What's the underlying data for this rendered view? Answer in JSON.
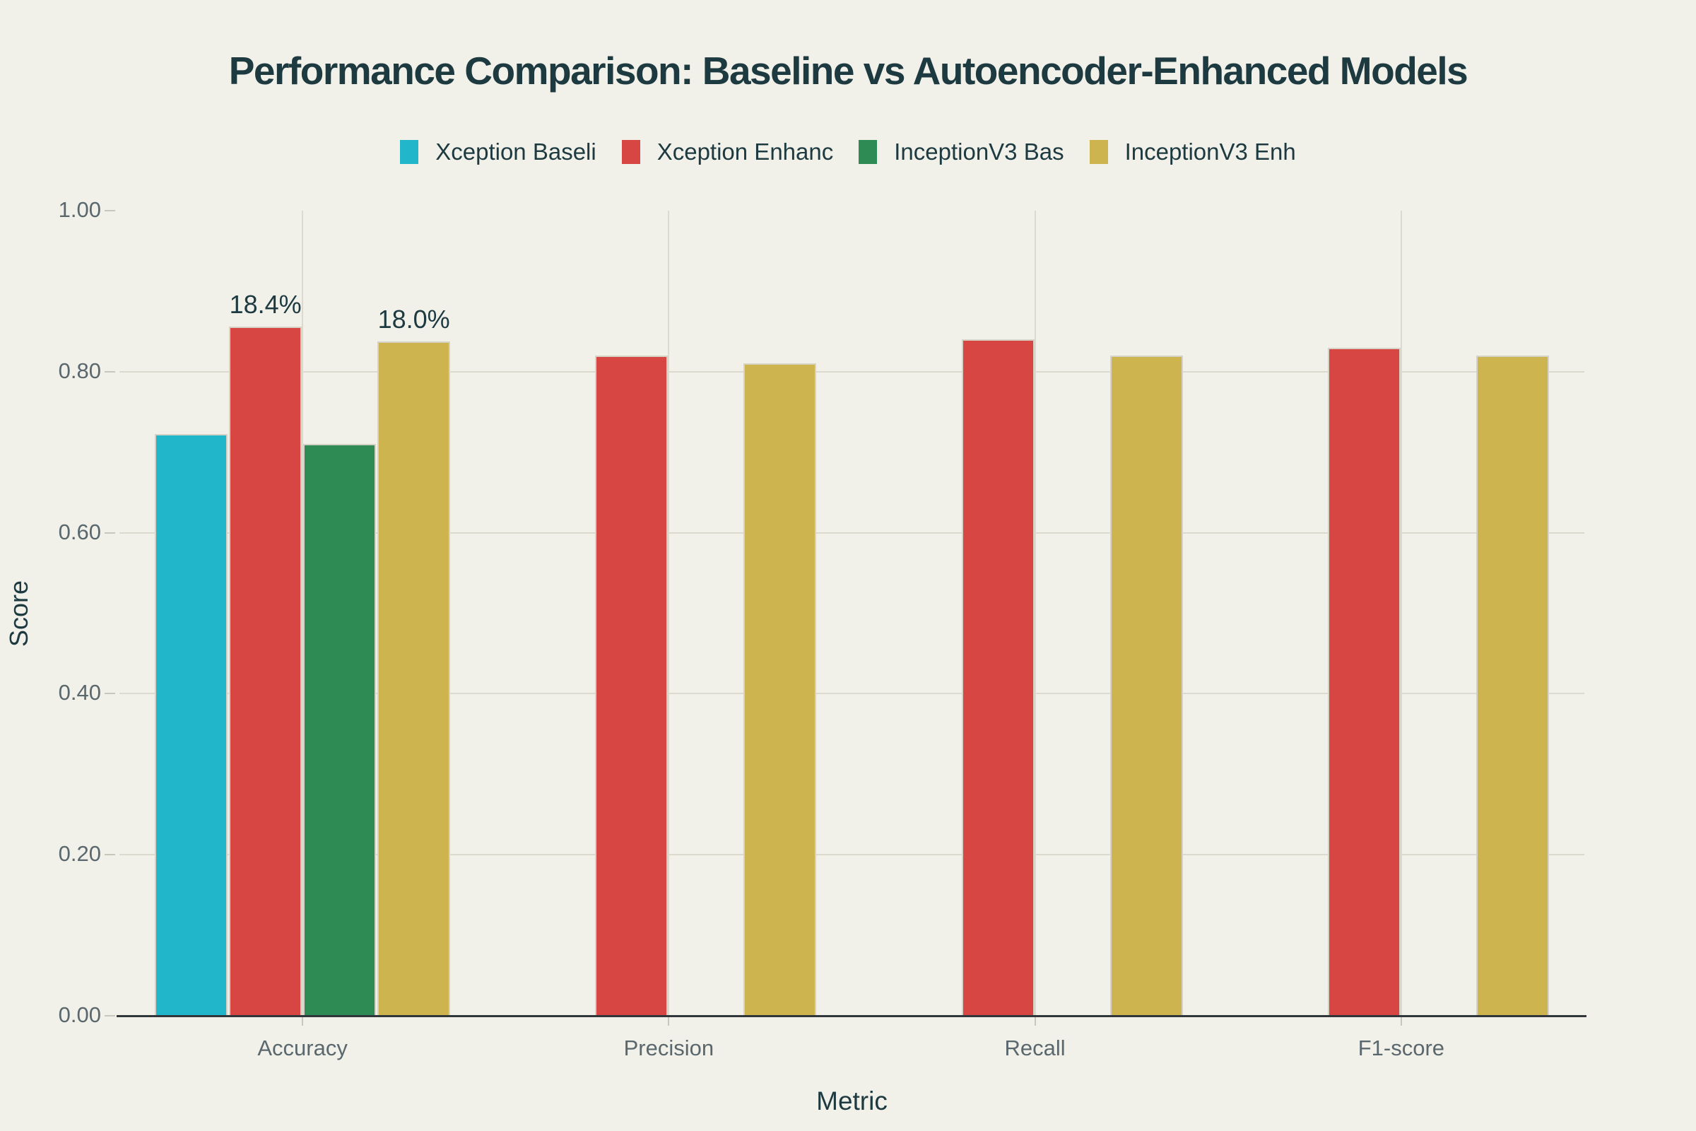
{
  "chart_data": {
    "type": "bar",
    "title": "Performance Comparison: Baseline vs Autoencoder-Enhanced Models",
    "xlabel": "Metric",
    "ylabel": "Score",
    "categories": [
      "Accuracy",
      "Precision",
      "Recall",
      "F1-score"
    ],
    "series": [
      {
        "name": "Xception Baseli",
        "color": "#22b6cb",
        "values": [
          0.723,
          null,
          null,
          null
        ]
      },
      {
        "name": "Xception Enhanc",
        "color": "#d84644",
        "values": [
          0.856,
          0.82,
          0.84,
          0.83
        ]
      },
      {
        "name": "InceptionV3 Bas",
        "color": "#2f8b54",
        "values": [
          0.71,
          null,
          null,
          null
        ]
      },
      {
        "name": "InceptionV3 Enh",
        "color": "#ceb44e",
        "values": [
          0.838,
          0.81,
          0.82,
          0.82
        ]
      }
    ],
    "ylim": [
      0,
      1.0
    ],
    "yticks": [
      "0.00",
      "0.20",
      "0.40",
      "0.60",
      "0.80",
      "1.00"
    ],
    "grid": true,
    "legend_position": "top",
    "annotations": [
      {
        "text": "18.4%",
        "category": "Accuracy",
        "series": "Xception Enhanc"
      },
      {
        "text": "18.0%",
        "category": "Accuracy",
        "series": "InceptionV3 Enh"
      }
    ]
  },
  "colors": {
    "background": "#f1f0e9",
    "title_text": "#1d3a41",
    "tick_text": "#5a686e",
    "axis_line": "#30363a",
    "gridline": "#dcd9cf",
    "bar_border": "#d6d3c6"
  }
}
